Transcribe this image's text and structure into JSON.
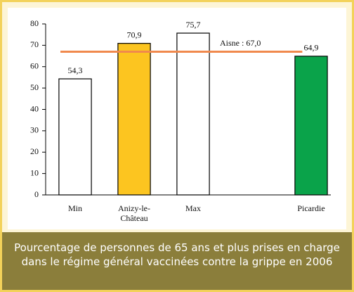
{
  "chart_data": {
    "type": "bar",
    "title": "Pourcentage de personnes de 65 ans et plus prises en charge dans le régime général vaccinées contre la grippe en 2006",
    "categories": [
      "Min",
      "Anizy-le-Château",
      "Max",
      null,
      "Picardie"
    ],
    "values": [
      54.3,
      70.9,
      75.7,
      null,
      64.9
    ],
    "value_labels": [
      "54,3",
      "70,9",
      "75,7",
      null,
      "64,9"
    ],
    "colors": [
      "#ffffff",
      "#fcc520",
      "#ffffff",
      null,
      "#0aa34a"
    ],
    "ylim": [
      0,
      80
    ],
    "yticks": [
      0,
      10,
      20,
      30,
      40,
      50,
      60,
      70,
      80
    ],
    "grid": false,
    "reference": {
      "value": 67,
      "label": "Aisne : 67,0",
      "color": "#f0894d"
    }
  }
}
